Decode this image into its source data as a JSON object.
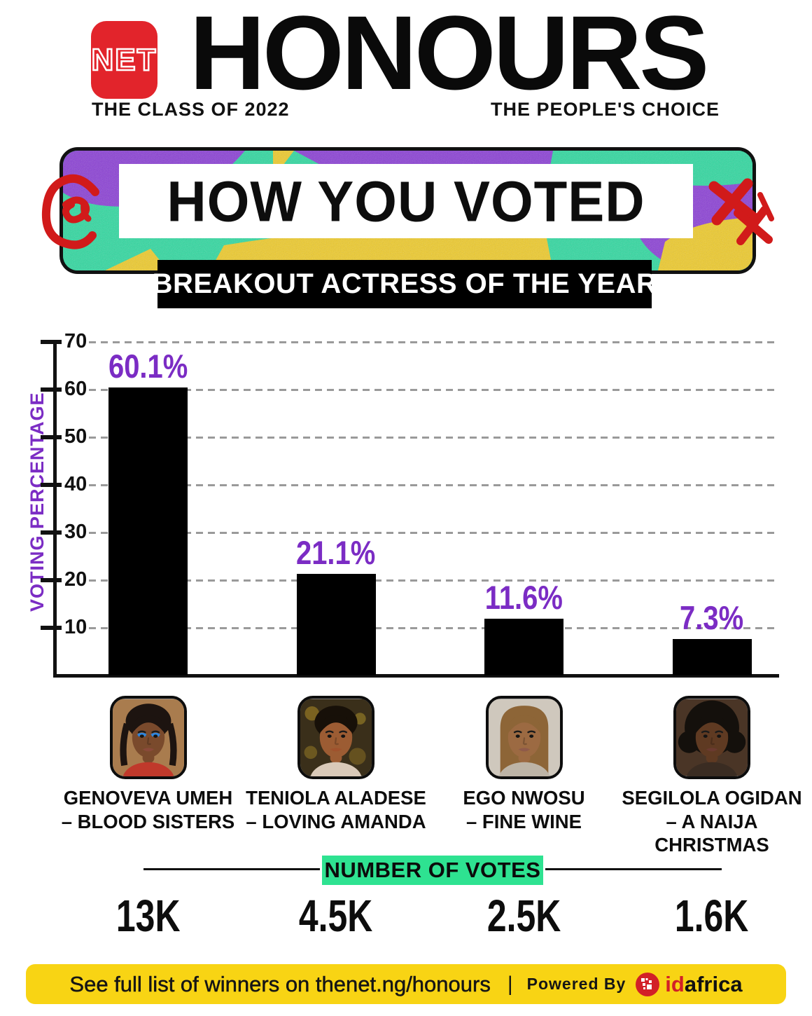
{
  "brand": {
    "logo_text": "NET",
    "title": "HONOURS",
    "tagline_left": "THE CLASS OF 2022",
    "tagline_right": "THE PEOPLE'S CHOICE"
  },
  "banner": {
    "headline": "HOW YOU VOTED",
    "category": "BREAKOUT ACTRESS OF THE YEAR"
  },
  "chart_data": {
    "type": "bar",
    "title": "HOW YOU VOTED — BREAKOUT ACTRESS OF THE YEAR",
    "xlabel": "",
    "ylabel": "VOTING PERCENTAGE",
    "ylim": [
      0,
      70
    ],
    "yticks": [
      10,
      20,
      30,
      40,
      50,
      60,
      70
    ],
    "grid": "horizontal dashed",
    "legend": "none",
    "categories": [
      "GENOVEVA UMEH – BLOOD SISTERS",
      "TENIOLA ALADESE – LOVING AMANDA",
      "EGO NWOSU – FINE WINE",
      "SEGILOLA OGIDAN – A NAIJA CHRISTMAS"
    ],
    "values": [
      60.1,
      21.1,
      11.6,
      7.3
    ],
    "value_labels": [
      "60.1%",
      "21.1%",
      "11.6%",
      "7.3%"
    ],
    "number_of_votes": [
      "13K",
      "4.5K",
      "2.5K",
      "1.6K"
    ],
    "bar_color": "#000000",
    "value_label_color": "#7B2CC4"
  },
  "nominees": [
    {
      "name": "GENOVEVA UMEH",
      "film": "– BLOOD SISTERS",
      "votes": "13K",
      "portrait": {
        "bg": "#a97c4e",
        "hair": "braids",
        "hair_color": "#1d1410",
        "skin": "#7a4a2c",
        "shirt": "#c0392b",
        "lip": "#8a4a3a",
        "eyeshadow": "#2e86de",
        "bokeh": false
      }
    },
    {
      "name": "TENIOLA ALADESE",
      "film": "– LOVING AMANDA",
      "votes": "4.5K",
      "portrait": {
        "bg": "#3a2f1a",
        "hair": "updo",
        "hair_color": "#171008",
        "skin": "#9c5c33",
        "shirt": "#d9c9b8",
        "lip": "#a0522d",
        "eyeshadow": "",
        "bokeh": true
      }
    },
    {
      "name": "EGO NWOSU",
      "film": "– FINE WINE",
      "votes": "2.5K",
      "portrait": {
        "bg": "#cfc8bd",
        "hair": "straight",
        "hair_color": "#8d6537",
        "skin": "#9c6a42",
        "shirt": "#bdb4a6",
        "lip": "#8f5a4a",
        "eyeshadow": "",
        "bokeh": false
      }
    },
    {
      "name": "SEGILOLA OGIDAN",
      "film": "– A NAIJA CHRISTMAS",
      "votes": "1.6K",
      "portrait": {
        "bg": "#4a3526",
        "hair": "afro",
        "hair_color": "#14100c",
        "skin": "#5f3a22",
        "shirt": "#3a2c22",
        "lip": "#6b3a30",
        "eyeshadow": "",
        "bokeh": false
      }
    }
  ],
  "votes_section": {
    "header": "NUMBER OF VOTES"
  },
  "footer": {
    "message": "See full list of winners on thenet.ng/honours",
    "separator": "|",
    "powered_by": "Powered By",
    "brand_id": "id",
    "brand_africa": "africa"
  },
  "colors": {
    "accent_purple": "#7B2CC4",
    "net_red": "#E2242B",
    "votes_green": "#2EE291",
    "footer_yellow": "#F8D414",
    "bar_black": "#000000",
    "banner_purple": "#8B3FD6",
    "banner_green": "#2FD9A0",
    "banner_yellow": "#EFCB2A",
    "scribble_red": "#D11A1A",
    "idafrica_red": "#D22027"
  }
}
